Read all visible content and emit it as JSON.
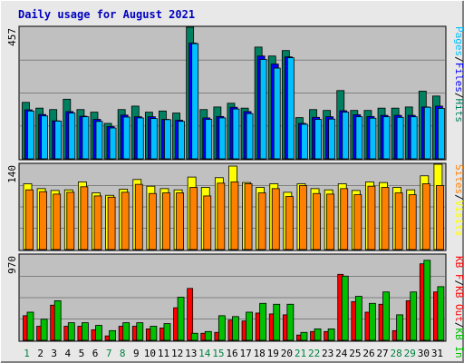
{
  "colors": {
    "background": "#e8e8e8",
    "panel_bg": "#c0c0c0",
    "grid": "#808080",
    "title": "#0000c0",
    "hits": "#008060",
    "files": "#0000ff",
    "pages": "#00c0ff",
    "visits": "#ffff00",
    "sites": "#ff8000",
    "kb_in": "#00c000",
    "kb_out": "#ff0000",
    "kb_f": "#ff0000",
    "label": "#000000",
    "weekend_label": "#008040"
  },
  "chart_data": [
    {
      "type": "bar",
      "title": "Daily usage for August 2021",
      "categories": [
        "1",
        "2",
        "3",
        "4",
        "5",
        "6",
        "7",
        "8",
        "9",
        "10",
        "11",
        "12",
        "13",
        "14",
        "15",
        "16",
        "17",
        "18",
        "19",
        "20",
        "21",
        "22",
        "23",
        "24",
        "25",
        "26",
        "27",
        "28",
        "29",
        "30",
        "31"
      ],
      "weekend_days": [
        "1",
        "7",
        "8",
        "14",
        "15",
        "21",
        "22",
        "28",
        "29"
      ],
      "ymax_label": "457",
      "ylim": [
        0,
        457
      ],
      "legend": [
        "Hits",
        "Files",
        "Pages"
      ],
      "series": [
        {
          "name": "Hits",
          "values": [
            196,
            176,
            171,
            207,
            171,
            162,
            123,
            171,
            183,
            162,
            166,
            159,
            457,
            171,
            180,
            193,
            176,
            388,
            357,
            376,
            143,
            171,
            168,
            237,
            168,
            168,
            176,
            176,
            180,
            235,
            218
          ]
        },
        {
          "name": "Files",
          "values": [
            170,
            154,
            132,
            164,
            148,
            137,
            112,
            152,
            146,
            146,
            137,
            134,
            402,
            142,
            147,
            179,
            164,
            357,
            329,
            354,
            123,
            144,
            146,
            167,
            153,
            147,
            151,
            151,
            151,
            180,
            183
          ]
        },
        {
          "name": "Pages",
          "values": [
            166,
            149,
            131,
            159,
            146,
            130,
            107,
            145,
            142,
            140,
            136,
            130,
            400,
            137,
            142,
            173,
            157,
            345,
            315,
            351,
            120,
            137,
            138,
            162,
            146,
            141,
            146,
            144,
            146,
            179,
            175
          ]
        }
      ]
    },
    {
      "type": "bar",
      "ymax_label": "140",
      "ylim": [
        0,
        140
      ],
      "legend": [
        "Visits",
        "Sites"
      ],
      "series": [
        {
          "name": "Visits",
          "values": [
            108,
            100,
            97,
            98,
            111,
            93,
            89,
            99,
            115,
            104,
            100,
            98,
            119,
            102,
            118,
            137,
            110,
            102,
            108,
            94,
            108,
            100,
            98,
            108,
            97,
            111,
            110,
            102,
            98,
            121,
            140
          ]
        },
        {
          "name": "Sites",
          "values": [
            98,
            95,
            91,
            94,
            103,
            88,
            86,
            94,
            107,
            92,
            93,
            93,
            102,
            88,
            109,
            111,
            108,
            93,
            100,
            87,
            105,
            92,
            91,
            100,
            90,
            104,
            102,
            93,
            90,
            108,
            105
          ]
        }
      ]
    },
    {
      "type": "bar",
      "ymax_label": "970",
      "ylim": [
        0,
        970
      ],
      "legend": [
        "KB F",
        "KB Out",
        "KB In"
      ],
      "series": [
        {
          "name": "KB Out",
          "values": [
            280,
            160,
            400,
            160,
            160,
            120,
            50,
            160,
            160,
            130,
            140,
            370,
            590,
            80,
            90,
            230,
            220,
            310,
            300,
            290,
            60,
            100,
            100,
            750,
            440,
            320,
            410,
            110,
            450,
            870,
            550
          ]
        },
        {
          "name": "KB In",
          "values": [
            320,
            240,
            450,
            200,
            200,
            170,
            110,
            200,
            200,
            160,
            190,
            490,
            80,
            100,
            280,
            270,
            320,
            420,
            410,
            410,
            90,
            130,
            130,
            730,
            500,
            420,
            550,
            290,
            550,
            910,
            610
          ]
        }
      ]
    }
  ]
}
